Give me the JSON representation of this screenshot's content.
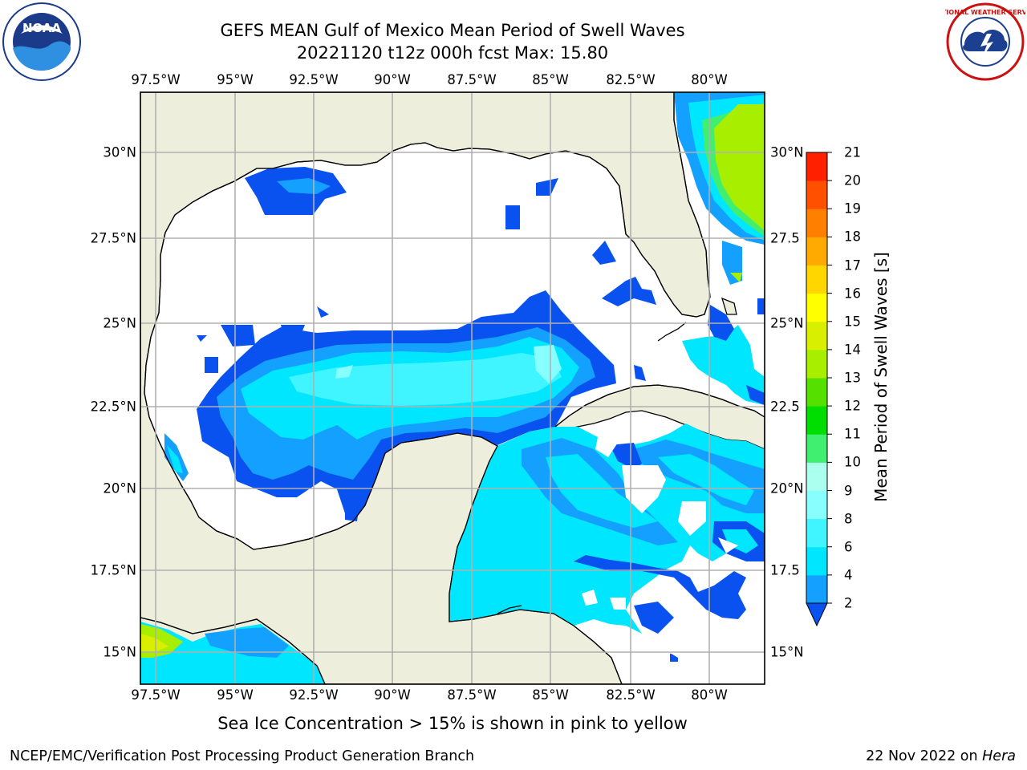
{
  "title": {
    "line1": "GEFS MEAN Gulf of Mexico Mean Period of Swell Waves",
    "line2": "20221120 t12z 000h fcst   Max: 15.80"
  },
  "map": {
    "lon_labels": [
      "97.5°W",
      "95°W",
      "92.5°W",
      "90°W",
      "87.5°W",
      "85°W",
      "82.5°W",
      "80°W"
    ],
    "lat_labels": [
      "30°N",
      "27.5°N",
      "25°N",
      "22.5°N",
      "20°N",
      "17.5°N",
      "15°N"
    ],
    "right_lat_labels": [
      "30°N",
      "27.5",
      "25°N",
      "22.5",
      "20°N",
      "17.5",
      "15°N"
    ],
    "land_color": "#eeeedd",
    "coast_color": "#000000",
    "grid_color": "#b0b0b0"
  },
  "colorbar": {
    "title": "Mean Period of Swell Waves [s]",
    "ticks": [
      "2",
      "4",
      "6",
      "8",
      "9",
      "10",
      "11",
      "12",
      "13",
      "14",
      "15",
      "16",
      "17",
      "18",
      "19",
      "20",
      "21"
    ],
    "colors": [
      "#0a52f0",
      "#14a0ff",
      "#00e6ff",
      "#40f5ff",
      "#88ffff",
      "#aaffee",
      "#40ee70",
      "#00dd00",
      "#55e000",
      "#a8ee00",
      "#d8f000",
      "#ffff00",
      "#ffd600",
      "#ffaa00",
      "#ff8000",
      "#ff5000",
      "#ff2000",
      "#ff0000"
    ]
  },
  "footnote": "Sea Ice Concentration > 15% is shown in pink to yellow",
  "credits": {
    "left": "NCEP/EMC/Verification Post Processing Product Generation Branch",
    "right_prefix": "22 Nov 2022 on ",
    "right_host": "Hera"
  },
  "logos": {
    "left": "noaa-logo",
    "right": "national-weather-service-logo",
    "right_text": "NATIONAL WEATHER SERVICE",
    "left_text": "NOAA"
  }
}
